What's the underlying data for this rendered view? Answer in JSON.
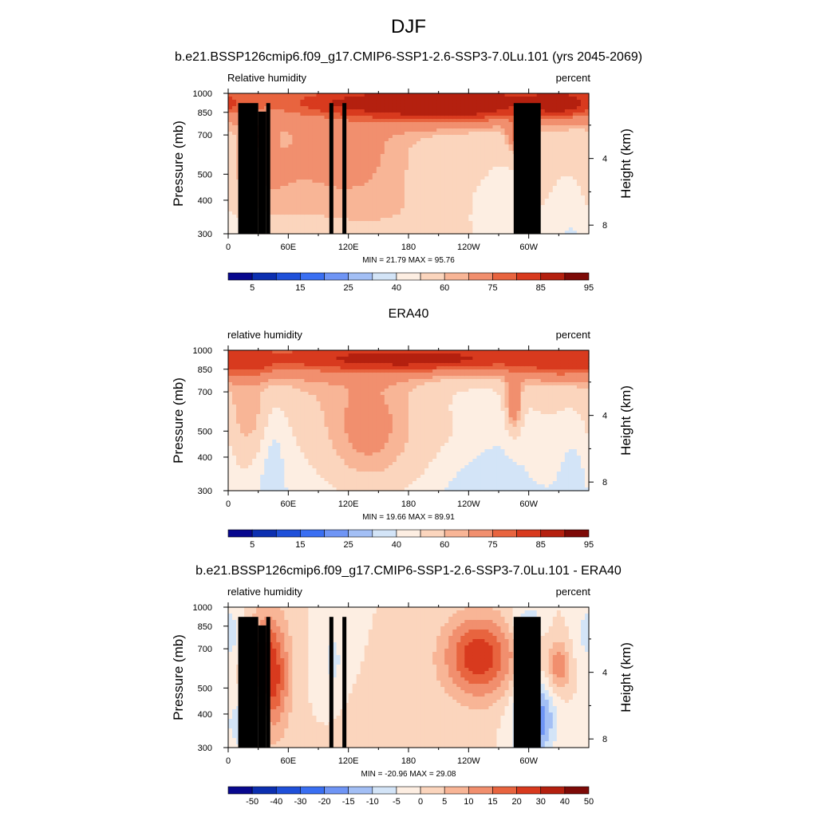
{
  "figure": {
    "title": "DJF"
  },
  "colors": {
    "rh_palette": [
      "#08088e",
      "#0c2fb0",
      "#1f50d9",
      "#3a6ff2",
      "#6f95f5",
      "#a3bff5",
      "#d3e4f7",
      "#fdeee2",
      "#fbd5bd",
      "#f8b596",
      "#f18f6e",
      "#e8643f",
      "#d83a1e",
      "#b4200f",
      "#7d0a07"
    ],
    "diff_palette": [
      "#08088e",
      "#0c2fb0",
      "#1f50d9",
      "#3a6ff2",
      "#6f95f5",
      "#a3bff5",
      "#d3e4f7",
      "#fdeee2",
      "#fbd5bd",
      "#f8b596",
      "#f18f6e",
      "#e8643f",
      "#d83a1e",
      "#b4200f",
      "#7d0a07"
    ],
    "terrain": "#000000"
  },
  "chart_data": [
    {
      "type": "heatmap",
      "title": "b.e21.BSSP126cmip6.f09_g17.CMIP6-SSP1-2.6-SSP3-7.0Lu.101 (yrs 2045-2069)",
      "left_label": "Relative humidity",
      "right_label": "percent",
      "ylabel": "Pressure (mb)",
      "ylabel_right": "Height (km)",
      "x_ticks": [
        "0",
        "60E",
        "120E",
        "180",
        "120W",
        "60W"
      ],
      "x_tick_lon": [
        0,
        60,
        120,
        180,
        240,
        300
      ],
      "xlim": [
        0,
        360
      ],
      "y_ticks": [
        "300",
        "400",
        "500",
        "700",
        "850",
        "1000"
      ],
      "y_tick_p": [
        300,
        400,
        500,
        700,
        850,
        1000
      ],
      "ylim": [
        300,
        1000
      ],
      "log_pressure": true,
      "right_ticks": [
        "8",
        "4"
      ],
      "right_tick_km": [
        8,
        4
      ],
      "min_max_text": "MIN =  21.79  MAX =  95.76",
      "colorbar_labels": [
        "5",
        "15",
        "25",
        "40",
        "60",
        "75",
        "85",
        "95"
      ],
      "levels": [
        5,
        10,
        15,
        20,
        25,
        30,
        40,
        50,
        60,
        65,
        75,
        80,
        85,
        90,
        95
      ],
      "max_value": 95.76,
      "min_value": 21.79,
      "terrain": [
        [
          10,
          30,
          920
        ],
        [
          30,
          38,
          855
        ],
        [
          38,
          42,
          920
        ],
        [
          101,
          105,
          920
        ],
        [
          114,
          118,
          920
        ],
        [
          285,
          312,
          920
        ]
      ],
      "blobs": [
        {
          "lon": 200,
          "p": 350,
          "val": 58,
          "slon": 120,
          "sp": 0.7
        },
        {
          "lon": 270,
          "p": 360,
          "val": 40,
          "slon": 22,
          "sp": 0.35
        },
        {
          "lon": 350,
          "p": 340,
          "val": 33,
          "slon": 18,
          "sp": 0.4
        },
        {
          "lon": 2,
          "p": 330,
          "val": 38,
          "slon": 10,
          "sp": 0.3
        },
        {
          "lon": 200,
          "p": 560,
          "val": 52,
          "slon": 60,
          "sp": 0.2
        },
        {
          "lon": 40,
          "p": 500,
          "val": 65,
          "slon": 40,
          "sp": 0.35
        },
        {
          "lon": 120,
          "p": 600,
          "val": 68,
          "slon": 50,
          "sp": 0.4
        },
        {
          "lon": 30,
          "p": 690,
          "val": 80,
          "slon": 8,
          "sp": 0.1
        },
        {
          "lon": 290,
          "p": 690,
          "val": 80,
          "slon": 8,
          "sp": 0.1
        },
        {
          "lon": 220,
          "p": 920,
          "val": 95,
          "slon": 60,
          "sp": 0.12
        },
        {
          "lon": 160,
          "p": 920,
          "val": 88,
          "slon": 90,
          "sp": 0.1
        },
        {
          "lon": 330,
          "p": 920,
          "val": 90,
          "slon": 30,
          "sp": 0.1
        }
      ]
    },
    {
      "type": "heatmap",
      "title": "ERA40",
      "left_label": "relative humidity",
      "right_label": "percent",
      "ylabel": "Pressure (mb)",
      "ylabel_right": "Height (km)",
      "x_ticks": [
        "0",
        "60E",
        "120E",
        "180",
        "120W",
        "60W"
      ],
      "x_tick_lon": [
        0,
        60,
        120,
        180,
        240,
        300
      ],
      "xlim": [
        0,
        360
      ],
      "y_ticks": [
        "300",
        "400",
        "500",
        "700",
        "850",
        "1000"
      ],
      "y_tick_p": [
        300,
        400,
        500,
        700,
        850,
        1000
      ],
      "ylim": [
        300,
        1000
      ],
      "log_pressure": true,
      "right_ticks": [
        "8",
        "4"
      ],
      "right_tick_km": [
        8,
        4
      ],
      "min_max_text": "MIN =  19.66  MAX =  89.91",
      "colorbar_labels": [
        "5",
        "15",
        "25",
        "40",
        "60",
        "75",
        "85",
        "95"
      ],
      "levels": [
        5,
        10,
        15,
        20,
        25,
        30,
        40,
        50,
        60,
        65,
        75,
        80,
        85,
        90,
        95
      ],
      "max_value": 89.91,
      "min_value": 19.66,
      "terrain": [],
      "blobs": [
        {
          "lon": 40,
          "p": 420,
          "val": 25,
          "slon": 12,
          "sp": 0.3
        },
        {
          "lon": 250,
          "p": 400,
          "val": 22,
          "slon": 28,
          "sp": 0.35
        },
        {
          "lon": 350,
          "p": 380,
          "val": 35,
          "slon": 15,
          "sp": 0.3
        },
        {
          "lon": 220,
          "p": 520,
          "val": 48,
          "slon": 55,
          "sp": 0.35
        },
        {
          "lon": 140,
          "p": 520,
          "val": 68,
          "slon": 40,
          "sp": 0.45
        },
        {
          "lon": 20,
          "p": 600,
          "val": 63,
          "slon": 18,
          "sp": 0.4
        },
        {
          "lon": 285,
          "p": 650,
          "val": 75,
          "slon": 6,
          "sp": 0.2
        },
        {
          "lon": 180,
          "p": 930,
          "val": 88,
          "slon": 130,
          "sp": 0.1
        },
        {
          "lon": 20,
          "p": 920,
          "val": 84,
          "slon": 20,
          "sp": 0.1
        },
        {
          "lon": 330,
          "p": 920,
          "val": 84,
          "slon": 30,
          "sp": 0.1
        }
      ]
    },
    {
      "type": "heatmap",
      "title": "b.e21.BSSP126cmip6.f09_g17.CMIP6-SSP1-2.6-SSP3-7.0Lu.101 - ERA40",
      "left_label": "relative humidity",
      "right_label": "percent",
      "ylabel": "Pressure (mb)",
      "ylabel_right": "Height (km)",
      "x_ticks": [
        "0",
        "60E",
        "120E",
        "180",
        "120W",
        "60W"
      ],
      "x_tick_lon": [
        0,
        60,
        120,
        180,
        240,
        300
      ],
      "xlim": [
        0,
        360
      ],
      "y_ticks": [
        "300",
        "400",
        "500",
        "700",
        "850",
        "1000"
      ],
      "y_tick_p": [
        300,
        400,
        500,
        700,
        850,
        1000
      ],
      "ylim": [
        300,
        1000
      ],
      "log_pressure": true,
      "right_ticks": [
        "8",
        "4"
      ],
      "right_tick_km": [
        8,
        4
      ],
      "min_max_text": "MIN = -20.96  MAX =  29.08",
      "colorbar_labels": [
        "-50",
        "-40",
        "-30",
        "-20",
        "-15",
        "-10",
        "-5",
        "0",
        "5",
        "10",
        "15",
        "20",
        "30",
        "40",
        "50"
      ],
      "levels": [
        -50,
        -40,
        -30,
        -20,
        -15,
        -10,
        -5,
        0,
        5,
        10,
        15,
        20,
        30,
        40,
        50
      ],
      "max_value": 29.08,
      "min_value": -20.96,
      "terrain": [
        [
          10,
          30,
          920
        ],
        [
          30,
          38,
          855
        ],
        [
          38,
          42,
          920
        ],
        [
          101,
          105,
          920
        ],
        [
          114,
          118,
          920
        ],
        [
          285,
          312,
          920
        ]
      ],
      "blobs": [
        {
          "lon": 40,
          "p": 560,
          "val": 27,
          "slon": 14,
          "sp": 0.35
        },
        {
          "lon": 250,
          "p": 650,
          "val": 24,
          "slon": 25,
          "sp": 0.25
        },
        {
          "lon": 330,
          "p": 600,
          "val": 15,
          "slon": 8,
          "sp": 0.15
        },
        {
          "lon": 300,
          "p": 700,
          "val": 10,
          "slon": 8,
          "sp": 0.15
        },
        {
          "lon": 305,
          "p": 380,
          "val": -22,
          "slon": 14,
          "sp": 0.22
        },
        {
          "lon": 15,
          "p": 370,
          "val": -8,
          "slon": 14,
          "sp": 0.2
        },
        {
          "lon": 105,
          "p": 600,
          "val": -6,
          "slon": 12,
          "sp": 0.35
        },
        {
          "lon": 0,
          "p": 800,
          "val": -7,
          "slon": 10,
          "sp": 0.2
        },
        {
          "lon": 160,
          "p": 320,
          "val": 5,
          "slon": 40,
          "sp": 0.3
        },
        {
          "lon": 300,
          "p": 880,
          "val": -10,
          "slon": 10,
          "sp": 0.1
        }
      ]
    }
  ]
}
